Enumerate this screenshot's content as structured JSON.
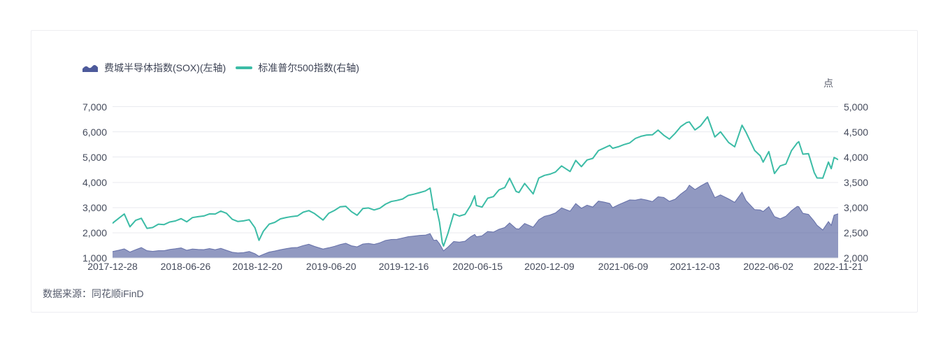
{
  "page": {
    "background": "#ffffff"
  },
  "card": {
    "background": "#ffffff",
    "border_color": "#ededf1"
  },
  "legend": {
    "items": [
      {
        "label": "费城半导体指数(SOX)(左轴)",
        "icon": "area-swatch",
        "color": "#4d5a9b"
      },
      {
        "label": "标准普尔500指数(右轴)",
        "icon": "line-swatch",
        "color": "#3cbca6"
      }
    ]
  },
  "footer": {
    "source_label": "数据来源：同花顺iFinD"
  },
  "chart_data": {
    "type": "combo",
    "title": "",
    "grid": true,
    "legend_position": "top-left",
    "x_tick_labels": [
      "2017-12-28",
      "2018-06-26",
      "2018-12-20",
      "2019-06-20",
      "2019-12-16",
      "2020-06-15",
      "2020-12-09",
      "2021-06-09",
      "2021-12-03",
      "2022-06-02",
      "2022-11-21"
    ],
    "left_axis": {
      "min": 1000,
      "max": 7000,
      "tick_values": [
        1000,
        2000,
        3000,
        4000,
        5000,
        6000,
        7000
      ],
      "tick_labels": [
        "1,000",
        "2,000",
        "3,000",
        "4,000",
        "5,000",
        "6,000",
        "7,000"
      ]
    },
    "right_axis": {
      "min": 2000,
      "max": 5000,
      "unit": "点",
      "tick_values": [
        2000,
        2500,
        3000,
        3500,
        4000,
        4500,
        5000
      ],
      "tick_labels": [
        "2,000",
        "2,500",
        "3,000",
        "3,500",
        "4,000",
        "4,500",
        "5,000"
      ]
    },
    "x": [
      "2017-12-28",
      "2018-01-12",
      "2018-01-26",
      "2018-02-09",
      "2018-02-23",
      "2018-03-09",
      "2018-03-23",
      "2018-04-06",
      "2018-04-20",
      "2018-05-04",
      "2018-05-18",
      "2018-06-01",
      "2018-06-15",
      "2018-06-29",
      "2018-07-13",
      "2018-07-27",
      "2018-08-10",
      "2018-08-24",
      "2018-09-07",
      "2018-09-21",
      "2018-10-05",
      "2018-10-19",
      "2018-11-02",
      "2018-11-16",
      "2018-11-30",
      "2018-12-14",
      "2018-12-24",
      "2019-01-04",
      "2019-01-18",
      "2019-02-01",
      "2019-02-15",
      "2019-03-01",
      "2019-03-15",
      "2019-03-29",
      "2019-04-12",
      "2019-04-26",
      "2019-05-10",
      "2019-05-31",
      "2019-06-14",
      "2019-06-28",
      "2019-07-12",
      "2019-07-26",
      "2019-08-09",
      "2019-08-23",
      "2019-09-06",
      "2019-09-20",
      "2019-10-04",
      "2019-10-18",
      "2019-11-01",
      "2019-11-15",
      "2019-11-29",
      "2019-12-13",
      "2019-12-27",
      "2020-01-10",
      "2020-01-24",
      "2020-02-07",
      "2020-02-19",
      "2020-02-28",
      "2020-03-06",
      "2020-03-13",
      "2020-03-20",
      "2020-03-23",
      "2020-04-03",
      "2020-04-17",
      "2020-05-01",
      "2020-05-15",
      "2020-05-29",
      "2020-06-08",
      "2020-06-12",
      "2020-06-26",
      "2020-07-10",
      "2020-07-24",
      "2020-08-07",
      "2020-08-21",
      "2020-09-02",
      "2020-09-18",
      "2020-09-25",
      "2020-10-09",
      "2020-10-30",
      "2020-11-13",
      "2020-11-27",
      "2020-12-11",
      "2020-12-24",
      "2021-01-08",
      "2021-01-29",
      "2021-02-12",
      "2021-02-26",
      "2021-03-12",
      "2021-03-26",
      "2021-04-09",
      "2021-04-23",
      "2021-05-07",
      "2021-05-14",
      "2021-05-28",
      "2021-06-11",
      "2021-06-25",
      "2021-07-09",
      "2021-07-23",
      "2021-08-06",
      "2021-08-20",
      "2021-09-03",
      "2021-09-17",
      "2021-10-01",
      "2021-10-15",
      "2021-10-29",
      "2021-11-12",
      "2021-11-19",
      "2021-12-03",
      "2021-12-17",
      "2021-12-31",
      "2022-01-03",
      "2022-01-21",
      "2022-02-04",
      "2022-02-24",
      "2022-03-11",
      "2022-03-29",
      "2022-04-08",
      "2022-04-29",
      "2022-05-13",
      "2022-05-20",
      "2022-06-03",
      "2022-06-17",
      "2022-07-01",
      "2022-07-15",
      "2022-07-29",
      "2022-08-12",
      "2022-08-16",
      "2022-08-26",
      "2022-09-09",
      "2022-09-23",
      "2022-09-30",
      "2022-10-14",
      "2022-10-28",
      "2022-11-04",
      "2022-11-11",
      "2022-11-21"
    ],
    "series": [
      {
        "name": "费城半导体指数(SOX)(左轴)",
        "type": "area",
        "axis": "left",
        "color": "#4d5a9b",
        "fill_opacity": 0.62,
        "values": [
          1257,
          1308,
          1362,
          1235,
          1330,
          1417,
          1290,
          1262,
          1290,
          1292,
          1338,
          1367,
          1402,
          1308,
          1358,
          1337,
          1332,
          1373,
          1329,
          1383,
          1305,
          1230,
          1201,
          1215,
          1261,
          1173,
          1068,
          1148,
          1236,
          1278,
          1329,
          1372,
          1407,
          1418,
          1494,
          1546,
          1460,
          1357,
          1407,
          1464,
          1534,
          1585,
          1485,
          1443,
          1555,
          1578,
          1540,
          1603,
          1697,
          1735,
          1743,
          1795,
          1846,
          1870,
          1899,
          1907,
          1966,
          1702,
          1712,
          1569,
          1372,
          1286,
          1431,
          1655,
          1629,
          1665,
          1844,
          1935,
          1843,
          1882,
          2054,
          2028,
          2143,
          2211,
          2390,
          2164,
          2151,
          2368,
          2225,
          2518,
          2655,
          2706,
          2787,
          2987,
          2857,
          3160,
          2974,
          3096,
          3022,
          3256,
          3218,
          3161,
          2994,
          3108,
          3204,
          3303,
          3291,
          3343,
          3297,
          3240,
          3427,
          3403,
          3248,
          3332,
          3536,
          3702,
          3887,
          3716,
          3858,
          3979,
          3998,
          3394,
          3503,
          3343,
          3208,
          3610,
          3278,
          2919,
          2904,
          2843,
          3037,
          2644,
          2556,
          2657,
          2878,
          3047,
          3035,
          2775,
          2728,
          2459,
          2300,
          2110,
          2445,
          2298,
          2702,
          2755
        ]
      },
      {
        "name": "标准普尔500指数(右轴)",
        "type": "line",
        "axis": "right",
        "color": "#3cbca6",
        "line_width": 2,
        "values": [
          2690,
          2786,
          2873,
          2620,
          2747,
          2787,
          2588,
          2604,
          2670,
          2663,
          2713,
          2735,
          2780,
          2718,
          2801,
          2819,
          2833,
          2875,
          2872,
          2930,
          2886,
          2768,
          2723,
          2736,
          2760,
          2600,
          2351,
          2532,
          2671,
          2707,
          2776,
          2803,
          2822,
          2834,
          2907,
          2940,
          2881,
          2752,
          2887,
          2942,
          3014,
          3026,
          2919,
          2847,
          2979,
          2992,
          2952,
          2986,
          3067,
          3120,
          3141,
          3169,
          3240,
          3265,
          3295,
          3328,
          3386,
          2954,
          2972,
          2711,
          2305,
          2237,
          2489,
          2875,
          2831,
          2864,
          3044,
          3232,
          3041,
          3009,
          3185,
          3216,
          3351,
          3397,
          3581,
          3319,
          3298,
          3477,
          3270,
          3585,
          3638,
          3663,
          3703,
          3825,
          3714,
          3935,
          3811,
          3943,
          3975,
          4129,
          4180,
          4233,
          4174,
          4204,
          4247,
          4281,
          4370,
          4412,
          4437,
          4442,
          4535,
          4433,
          4357,
          4471,
          4605,
          4683,
          4698,
          4538,
          4621,
          4766,
          4797,
          4398,
          4501,
          4289,
          4204,
          4631,
          4488,
          4132,
          4024,
          3901,
          4109,
          3675,
          3825,
          3863,
          4130,
          4280,
          4305,
          4058,
          4067,
          3693,
          3586,
          3583,
          3901,
          3771,
          3993,
          3950
        ]
      }
    ],
    "style": {
      "gridline_color": "#e9eaef",
      "axis_line_color": "#e0e2e8",
      "axis_text_color": "#454b5c"
    }
  }
}
